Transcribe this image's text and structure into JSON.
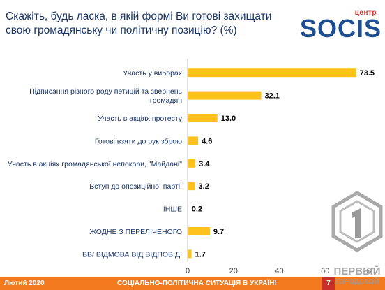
{
  "question": "Скажіть, будь ласка, в якій формі Ви готові захищати свою громадянську чи політичну позицію? (%)",
  "logo": {
    "top": "центр",
    "main": "SOCIS"
  },
  "footer": {
    "left": "Лютий 2020",
    "middle": "СОЦІАЛЬНО-ПОЛІТИЧНА СИТУАЦІЯ В УКРАЇНІ",
    "page": "7"
  },
  "watermark": {
    "line1": "ПЕРВЫЙ",
    "line2": "ГОРОДСКОЙ"
  },
  "colors": {
    "bar": "#FFC21C",
    "text": "#1a3468",
    "footer": "#f47a20"
  },
  "chart_data": {
    "type": "bar",
    "orientation": "horizontal",
    "categories": [
      [
        "Участь у виборах"
      ],
      [
        "Підписання різного роду петицій та звернень",
        "громадян"
      ],
      [
        "Участь в акціях протесту"
      ],
      [
        "Готові взяти до рук зброю"
      ],
      [
        "Участь в акціях громадянської непокори, \"Майдані\""
      ],
      [
        "Вступ до опозиційної партії"
      ],
      [
        "ІНШЕ"
      ],
      [
        "ЖОДНЕ З ПЕРЕЛІЧЕНОГО"
      ],
      [
        "ВВ/ ВІДМОВА ВІД ВІДПОВІДІ"
      ]
    ],
    "values": [
      73.5,
      32.1,
      13.0,
      4.6,
      3.4,
      3.2,
      0.2,
      9.7,
      1.7
    ],
    "value_labels": [
      "73.5",
      "32.1",
      "13.0",
      "4.6",
      "3.4",
      "3.2",
      "0.2",
      "9.7",
      "1.7"
    ],
    "xlim": [
      0,
      80
    ],
    "xticks": [
      "0",
      "20",
      "40",
      "60",
      "80"
    ]
  }
}
